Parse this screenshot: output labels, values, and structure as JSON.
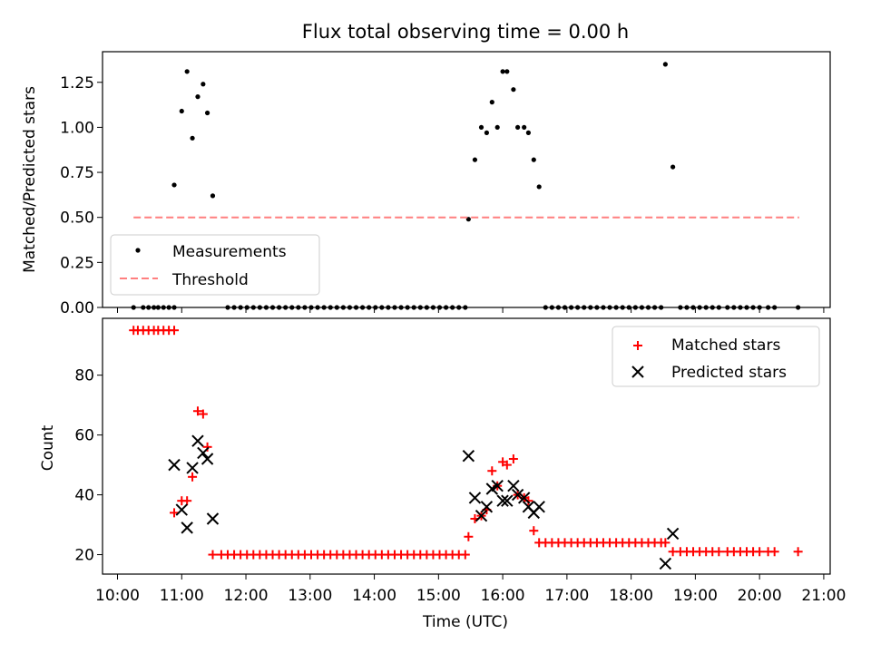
{
  "figure": {
    "title": "Flux total observing time = 0.00 h",
    "xlabel": "Time (UTC)"
  },
  "colors": {
    "measurement": "#000000",
    "threshold": "#ff7f7f",
    "matched": "#ff0000",
    "predicted": "#000000"
  },
  "chart_data": [
    {
      "type": "scatter",
      "ylabel": "Matched/Predicted stars",
      "xlim": [
        "09:46",
        "21:06"
      ],
      "ylim": [
        0,
        1.42
      ],
      "yticks": [
        0.0,
        0.25,
        0.5,
        0.75,
        1.0,
        1.25
      ],
      "ytick_labels": [
        "0.00",
        "0.25",
        "0.50",
        "0.75",
        "1.00",
        "1.25"
      ],
      "legend": {
        "position": "lower-left",
        "entries": [
          "Measurements",
          "Threshold"
        ]
      },
      "series": [
        {
          "name": "Measurements",
          "marker": "dot",
          "points": [
            [
              "10:15",
              0
            ],
            [
              "10:24",
              0
            ],
            [
              "10:29",
              0
            ],
            [
              "10:34",
              0
            ],
            [
              "10:38",
              0
            ],
            [
              "10:43",
              0
            ],
            [
              "10:48",
              0
            ],
            [
              "10:53",
              0
            ],
            [
              "10:53",
              0.68
            ],
            [
              "11:00",
              1.09
            ],
            [
              "11:05",
              1.31
            ],
            [
              "11:10",
              0.94
            ],
            [
              "11:15",
              1.17
            ],
            [
              "11:20",
              1.24
            ],
            [
              "11:24",
              1.08
            ],
            [
              "11:29",
              0.62
            ],
            [
              "11:43",
              0
            ],
            [
              "11:49",
              0
            ],
            [
              "11:55",
              0
            ],
            [
              "12:01",
              0
            ],
            [
              "12:07",
              0
            ],
            [
              "12:13",
              0
            ],
            [
              "12:19",
              0
            ],
            [
              "12:25",
              0
            ],
            [
              "12:31",
              0
            ],
            [
              "12:37",
              0
            ],
            [
              "12:43",
              0
            ],
            [
              "12:49",
              0
            ],
            [
              "12:55",
              0
            ],
            [
              "13:01",
              0
            ],
            [
              "13:07",
              0
            ],
            [
              "13:13",
              0
            ],
            [
              "13:19",
              0
            ],
            [
              "13:25",
              0
            ],
            [
              "13:31",
              0
            ],
            [
              "13:37",
              0
            ],
            [
              "13:43",
              0
            ],
            [
              "13:49",
              0
            ],
            [
              "13:55",
              0
            ],
            [
              "14:01",
              0
            ],
            [
              "14:07",
              0
            ],
            [
              "14:13",
              0
            ],
            [
              "14:19",
              0
            ],
            [
              "14:25",
              0
            ],
            [
              "14:31",
              0
            ],
            [
              "14:37",
              0
            ],
            [
              "14:43",
              0
            ],
            [
              "14:49",
              0
            ],
            [
              "14:55",
              0
            ],
            [
              "15:01",
              0
            ],
            [
              "15:07",
              0
            ],
            [
              "15:13",
              0
            ],
            [
              "15:19",
              0
            ],
            [
              "15:25",
              0
            ],
            [
              "15:28",
              0.49
            ],
            [
              "15:34",
              0.82
            ],
            [
              "15:40",
              1.0
            ],
            [
              "15:45",
              0.97
            ],
            [
              "15:50",
              1.14
            ],
            [
              "15:55",
              1.0
            ],
            [
              "16:00",
              1.31
            ],
            [
              "16:04",
              1.31
            ],
            [
              "16:10",
              1.21
            ],
            [
              "16:14",
              1.0
            ],
            [
              "16:20",
              1.0
            ],
            [
              "16:24",
              0.97
            ],
            [
              "16:29",
              0.82
            ],
            [
              "16:34",
              0.67
            ],
            [
              "16:40",
              0
            ],
            [
              "16:46",
              0
            ],
            [
              "16:52",
              0
            ],
            [
              "16:58",
              0
            ],
            [
              "17:04",
              0
            ],
            [
              "17:10",
              0
            ],
            [
              "17:16",
              0
            ],
            [
              "17:22",
              0
            ],
            [
              "17:28",
              0
            ],
            [
              "17:34",
              0
            ],
            [
              "17:40",
              0
            ],
            [
              "17:46",
              0
            ],
            [
              "17:52",
              0
            ],
            [
              "17:58",
              0
            ],
            [
              "18:04",
              0
            ],
            [
              "18:10",
              0
            ],
            [
              "18:16",
              0
            ],
            [
              "18:22",
              0
            ],
            [
              "18:28",
              0
            ],
            [
              "18:32",
              1.35
            ],
            [
              "18:39",
              0.78
            ],
            [
              "18:46",
              0
            ],
            [
              "18:52",
              0
            ],
            [
              "18:58",
              0
            ],
            [
              "19:04",
              0
            ],
            [
              "19:10",
              0
            ],
            [
              "19:16",
              0
            ],
            [
              "19:22",
              0
            ],
            [
              "19:30",
              0
            ],
            [
              "19:36",
              0
            ],
            [
              "19:42",
              0
            ],
            [
              "19:48",
              0
            ],
            [
              "19:54",
              0
            ],
            [
              "20:00",
              0
            ],
            [
              "20:08",
              0
            ],
            [
              "20:14",
              0
            ],
            [
              "20:36",
              0
            ]
          ]
        },
        {
          "name": "Threshold",
          "style": "dashed",
          "x": [
            "10:15",
            "20:37"
          ],
          "y": [
            0.5,
            0.5
          ]
        }
      ]
    },
    {
      "type": "scatter",
      "ylabel": "Count",
      "xlim": [
        "09:46",
        "21:06"
      ],
      "ylim": [
        13.5,
        99
      ],
      "yticks": [
        20,
        40,
        60,
        80
      ],
      "ytick_labels": [
        "20",
        "40",
        "60",
        "80"
      ],
      "legend": {
        "position": "upper-right",
        "entries": [
          "Matched stars",
          "Predicted stars"
        ]
      },
      "series": [
        {
          "name": "Matched stars",
          "marker": "plus",
          "points": [
            [
              "10:15",
              95
            ],
            [
              "10:19",
              95
            ],
            [
              "10:24",
              95
            ],
            [
              "10:29",
              95
            ],
            [
              "10:34",
              95
            ],
            [
              "10:38",
              95
            ],
            [
              "10:43",
              95
            ],
            [
              "10:48",
              95
            ],
            [
              "10:53",
              95
            ],
            [
              "10:53",
              34
            ],
            [
              "11:00",
              38
            ],
            [
              "11:05",
              38
            ],
            [
              "11:10",
              46
            ],
            [
              "11:15",
              68
            ],
            [
              "11:20",
              67
            ],
            [
              "11:24",
              56
            ],
            [
              "11:29",
              20
            ],
            [
              "11:37",
              20
            ],
            [
              "11:43",
              20
            ],
            [
              "11:49",
              20
            ],
            [
              "11:55",
              20
            ],
            [
              "12:01",
              20
            ],
            [
              "12:07",
              20
            ],
            [
              "12:13",
              20
            ],
            [
              "12:19",
              20
            ],
            [
              "12:25",
              20
            ],
            [
              "12:31",
              20
            ],
            [
              "12:37",
              20
            ],
            [
              "12:43",
              20
            ],
            [
              "12:49",
              20
            ],
            [
              "12:55",
              20
            ],
            [
              "13:01",
              20
            ],
            [
              "13:07",
              20
            ],
            [
              "13:13",
              20
            ],
            [
              "13:19",
              20
            ],
            [
              "13:25",
              20
            ],
            [
              "13:31",
              20
            ],
            [
              "13:37",
              20
            ],
            [
              "13:43",
              20
            ],
            [
              "13:49",
              20
            ],
            [
              "13:55",
              20
            ],
            [
              "14:01",
              20
            ],
            [
              "14:07",
              20
            ],
            [
              "14:13",
              20
            ],
            [
              "14:19",
              20
            ],
            [
              "14:25",
              20
            ],
            [
              "14:31",
              20
            ],
            [
              "14:37",
              20
            ],
            [
              "14:43",
              20
            ],
            [
              "14:49",
              20
            ],
            [
              "14:55",
              20
            ],
            [
              "15:01",
              20
            ],
            [
              "15:07",
              20
            ],
            [
              "15:13",
              20
            ],
            [
              "15:19",
              20
            ],
            [
              "15:25",
              20
            ],
            [
              "15:28",
              26
            ],
            [
              "15:34",
              32
            ],
            [
              "15:40",
              33
            ],
            [
              "15:45",
              35
            ],
            [
              "15:50",
              48
            ],
            [
              "15:55",
              43
            ],
            [
              "16:00",
              51
            ],
            [
              "16:04",
              50
            ],
            [
              "16:10",
              52
            ],
            [
              "16:14",
              40
            ],
            [
              "16:20",
              39
            ],
            [
              "16:24",
              38
            ],
            [
              "16:29",
              28
            ],
            [
              "16:34",
              24
            ],
            [
              "16:40",
              24
            ],
            [
              "16:46",
              24
            ],
            [
              "16:52",
              24
            ],
            [
              "16:58",
              24
            ],
            [
              "17:04",
              24
            ],
            [
              "17:10",
              24
            ],
            [
              "17:16",
              24
            ],
            [
              "17:22",
              24
            ],
            [
              "17:28",
              24
            ],
            [
              "17:34",
              24
            ],
            [
              "17:40",
              24
            ],
            [
              "17:46",
              24
            ],
            [
              "17:52",
              24
            ],
            [
              "17:58",
              24
            ],
            [
              "18:04",
              24
            ],
            [
              "18:10",
              24
            ],
            [
              "18:16",
              24
            ],
            [
              "18:22",
              24
            ],
            [
              "18:28",
              24
            ],
            [
              "18:32",
              24
            ],
            [
              "18:39",
              21
            ],
            [
              "18:46",
              21
            ],
            [
              "18:52",
              21
            ],
            [
              "18:58",
              21
            ],
            [
              "19:04",
              21
            ],
            [
              "19:10",
              21
            ],
            [
              "19:16",
              21
            ],
            [
              "19:22",
              21
            ],
            [
              "19:30",
              21
            ],
            [
              "19:36",
              21
            ],
            [
              "19:42",
              21
            ],
            [
              "19:48",
              21
            ],
            [
              "19:54",
              21
            ],
            [
              "20:00",
              21
            ],
            [
              "20:08",
              21
            ],
            [
              "20:14",
              21
            ],
            [
              "20:36",
              21
            ]
          ]
        },
        {
          "name": "Predicted stars",
          "marker": "x",
          "points": [
            [
              "10:53",
              50
            ],
            [
              "11:00",
              35
            ],
            [
              "11:05",
              29
            ],
            [
              "11:10",
              49
            ],
            [
              "11:15",
              58
            ],
            [
              "11:20",
              54
            ],
            [
              "11:24",
              52
            ],
            [
              "11:29",
              32
            ],
            [
              "15:28",
              53
            ],
            [
              "15:34",
              39
            ],
            [
              "15:40",
              33
            ],
            [
              "15:45",
              36
            ],
            [
              "15:50",
              42
            ],
            [
              "15:55",
              43
            ],
            [
              "16:00",
              38
            ],
            [
              "16:04",
              38
            ],
            [
              "16:10",
              43
            ],
            [
              "16:14",
              40
            ],
            [
              "16:20",
              39
            ],
            [
              "16:24",
              36
            ],
            [
              "16:29",
              34
            ],
            [
              "16:34",
              36
            ],
            [
              "18:32",
              17
            ],
            [
              "18:39",
              27
            ]
          ]
        }
      ]
    }
  ],
  "xticks": [
    "10:00",
    "11:00",
    "12:00",
    "13:00",
    "14:00",
    "15:00",
    "16:00",
    "17:00",
    "18:00",
    "19:00",
    "20:00",
    "21:00"
  ]
}
